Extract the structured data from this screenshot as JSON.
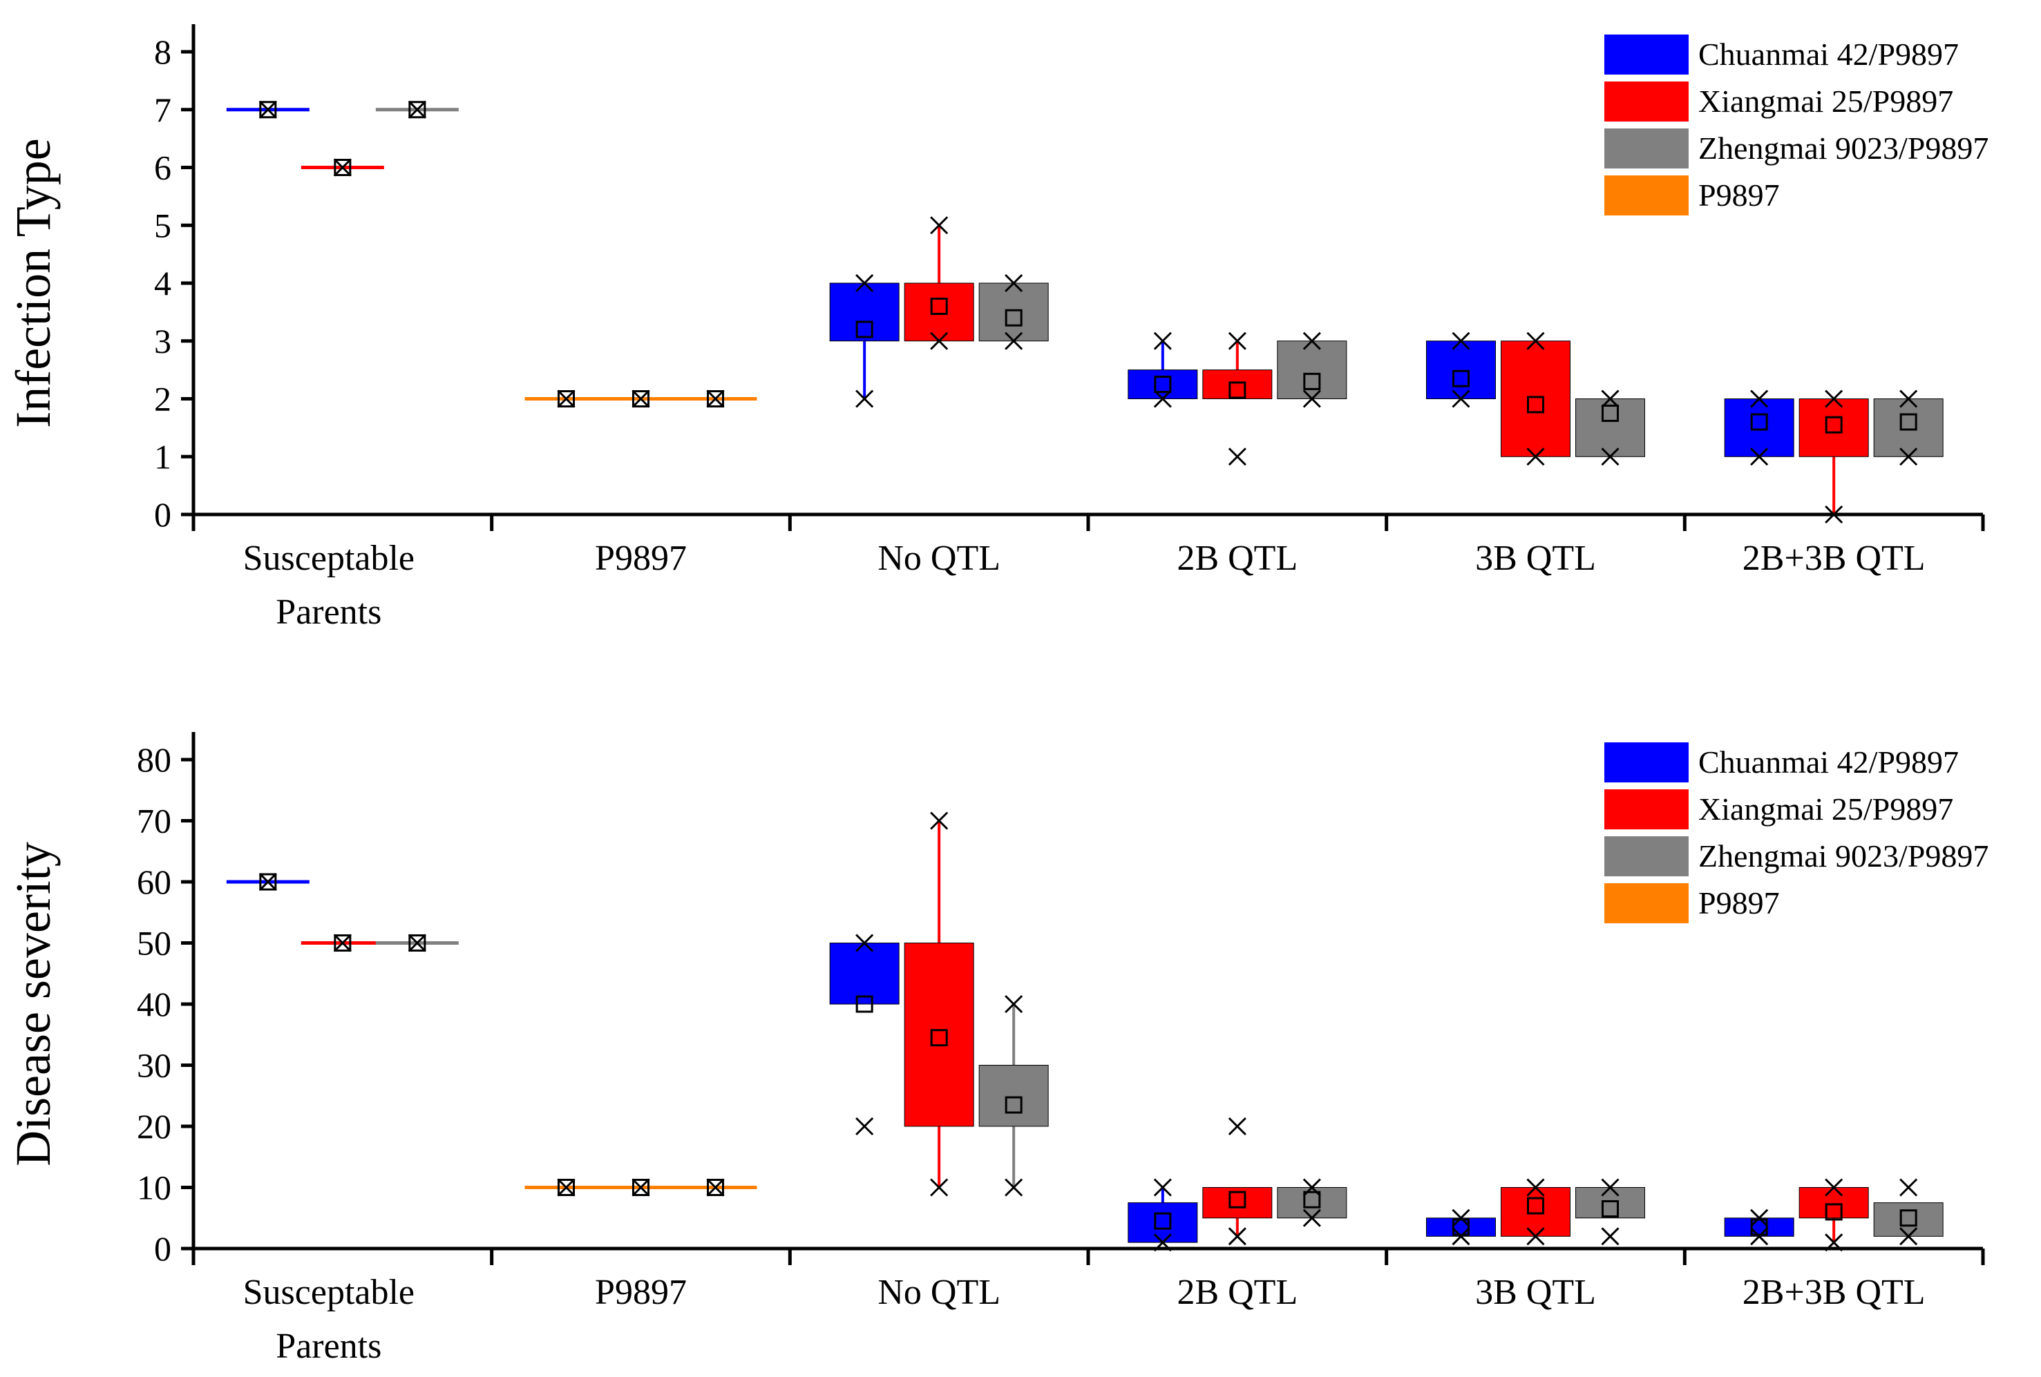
{
  "colors": {
    "Chuanmai 42/P9897": "#0000ff",
    "Xiangmai 25/P9897": "#ff0000",
    "Zhengmai 9023/P9897": "#808080",
    "P9897": "#ff8000"
  },
  "chart_data": [
    {
      "type": "box",
      "ylabel": "Infection Type",
      "xlabel": "",
      "ylim": [
        0,
        8
      ],
      "yticks": [
        0,
        1,
        2,
        3,
        4,
        5,
        6,
        7,
        8
      ],
      "categories": [
        [
          "Susceptable",
          "Parents"
        ],
        [
          "P9897"
        ],
        [
          "No QTL"
        ],
        [
          "2B QTL"
        ],
        [
          "3B QTL"
        ],
        [
          "2B+3B QTL"
        ]
      ],
      "legend": {
        "position": "top-right",
        "entries": [
          "Chuanmai 42/P9897",
          "Xiangmai 25/P9897",
          "Zhengmai 9023/P9897",
          "P9897"
        ]
      },
      "boxes": [
        {
          "category": 0,
          "slot": 0,
          "color": "Chuanmai 42/P9897",
          "q1": 7,
          "q3": 7,
          "whisker_low": 7,
          "whisker_high": 7,
          "mean": 7,
          "min": 7,
          "max": 7
        },
        {
          "category": 0,
          "slot": 1,
          "color": "Xiangmai 25/P9897",
          "q1": 6,
          "q3": 6,
          "whisker_low": 6,
          "whisker_high": 6,
          "mean": 6,
          "min": 6,
          "max": 6
        },
        {
          "category": 0,
          "slot": 2,
          "color": "Zhengmai 9023/P9897",
          "q1": 7,
          "q3": 7,
          "whisker_low": 7,
          "whisker_high": 7,
          "mean": 7,
          "min": 7,
          "max": 7
        },
        {
          "category": 1,
          "slot": 0,
          "color": "P9897",
          "q1": 2,
          "q3": 2,
          "whisker_low": 2,
          "whisker_high": 2,
          "mean": 2,
          "min": 2,
          "max": 2
        },
        {
          "category": 1,
          "slot": 1,
          "color": "P9897",
          "q1": 2,
          "q3": 2,
          "whisker_low": 2,
          "whisker_high": 2,
          "mean": 2,
          "min": 2,
          "max": 2
        },
        {
          "category": 1,
          "slot": 2,
          "color": "P9897",
          "q1": 2,
          "q3": 2,
          "whisker_low": 2,
          "whisker_high": 2,
          "mean": 2,
          "min": 2,
          "max": 2
        },
        {
          "category": 2,
          "slot": 0,
          "color": "Chuanmai 42/P9897",
          "q1": 3,
          "q3": 4,
          "whisker_low": 2,
          "whisker_high": 4,
          "mean": 3.2,
          "min": 2,
          "max": 4
        },
        {
          "category": 2,
          "slot": 1,
          "color": "Xiangmai 25/P9897",
          "q1": 3,
          "q3": 4,
          "whisker_low": 3,
          "whisker_high": 5,
          "mean": 3.6,
          "min": 3,
          "max": 5
        },
        {
          "category": 2,
          "slot": 2,
          "color": "Zhengmai 9023/P9897",
          "q1": 3,
          "q3": 4,
          "whisker_low": 3,
          "whisker_high": 4,
          "mean": 3.4,
          "min": 3,
          "max": 4
        },
        {
          "category": 3,
          "slot": 0,
          "color": "Chuanmai 42/P9897",
          "q1": 2,
          "q3": 2.5,
          "whisker_low": 2,
          "whisker_high": 3,
          "mean": 2.25,
          "min": 2,
          "max": 3
        },
        {
          "category": 3,
          "slot": 1,
          "color": "Xiangmai 25/P9897",
          "q1": 2,
          "q3": 2.5,
          "whisker_low": 2,
          "whisker_high": 3,
          "mean": 2.15,
          "min": 1,
          "max": 3
        },
        {
          "category": 3,
          "slot": 2,
          "color": "Zhengmai 9023/P9897",
          "q1": 2,
          "q3": 3,
          "whisker_low": 2,
          "whisker_high": 3,
          "mean": 2.3,
          "min": 2,
          "max": 3
        },
        {
          "category": 4,
          "slot": 0,
          "color": "Chuanmai 42/P9897",
          "q1": 2,
          "q3": 3,
          "whisker_low": 2,
          "whisker_high": 3,
          "mean": 2.35,
          "min": 2,
          "max": 3
        },
        {
          "category": 4,
          "slot": 1,
          "color": "Xiangmai 25/P9897",
          "q1": 1,
          "q3": 3,
          "whisker_low": 1,
          "whisker_high": 3,
          "mean": 1.9,
          "min": 1,
          "max": 3
        },
        {
          "category": 4,
          "slot": 2,
          "color": "Zhengmai 9023/P9897",
          "q1": 1,
          "q3": 2,
          "whisker_low": 1,
          "whisker_high": 2,
          "mean": 1.75,
          "min": 1,
          "max": 2
        },
        {
          "category": 5,
          "slot": 0,
          "color": "Chuanmai 42/P9897",
          "q1": 1,
          "q3": 2,
          "whisker_low": 1,
          "whisker_high": 2,
          "mean": 1.6,
          "min": 1,
          "max": 2
        },
        {
          "category": 5,
          "slot": 1,
          "color": "Xiangmai 25/P9897",
          "q1": 1,
          "q3": 2,
          "whisker_low": 0,
          "whisker_high": 2,
          "mean": 1.55,
          "min": 0,
          "max": 2
        },
        {
          "category": 5,
          "slot": 2,
          "color": "Zhengmai 9023/P9897",
          "q1": 1,
          "q3": 2,
          "whisker_low": 1,
          "whisker_high": 2,
          "mean": 1.6,
          "min": 1,
          "max": 2
        }
      ]
    },
    {
      "type": "box",
      "ylabel": "Disease severity",
      "xlabel": "",
      "ylim": [
        0,
        80
      ],
      "yticks": [
        0,
        10,
        20,
        30,
        40,
        50,
        60,
        70,
        80
      ],
      "categories": [
        [
          "Susceptable",
          "Parents"
        ],
        [
          "P9897"
        ],
        [
          "No QTL"
        ],
        [
          "2B QTL"
        ],
        [
          "3B QTL"
        ],
        [
          "2B+3B QTL"
        ]
      ],
      "legend": {
        "position": "top-right",
        "entries": [
          "Chuanmai 42/P9897",
          "Xiangmai 25/P9897",
          "Zhengmai 9023/P9897",
          "P9897"
        ]
      },
      "boxes": [
        {
          "category": 0,
          "slot": 0,
          "color": "Chuanmai 42/P9897",
          "q1": 60,
          "q3": 60,
          "whisker_low": 60,
          "whisker_high": 60,
          "mean": 60,
          "min": 60,
          "max": 60
        },
        {
          "category": 0,
          "slot": 1,
          "color": "Xiangmai 25/P9897",
          "q1": 50,
          "q3": 50,
          "whisker_low": 50,
          "whisker_high": 50,
          "mean": 50,
          "min": 50,
          "max": 50
        },
        {
          "category": 0,
          "slot": 2,
          "color": "Zhengmai 9023/P9897",
          "q1": 50,
          "q3": 50,
          "whisker_low": 50,
          "whisker_high": 50,
          "mean": 50,
          "min": 50,
          "max": 50
        },
        {
          "category": 1,
          "slot": 0,
          "color": "P9897",
          "q1": 10,
          "q3": 10,
          "whisker_low": 10,
          "whisker_high": 10,
          "mean": 10,
          "min": 10,
          "max": 10
        },
        {
          "category": 1,
          "slot": 1,
          "color": "P9897",
          "q1": 10,
          "q3": 10,
          "whisker_low": 10,
          "whisker_high": 10,
          "mean": 10,
          "min": 10,
          "max": 10
        },
        {
          "category": 1,
          "slot": 2,
          "color": "P9897",
          "q1": 10,
          "q3": 10,
          "whisker_low": 10,
          "whisker_high": 10,
          "mean": 10,
          "min": 10,
          "max": 10
        },
        {
          "category": 2,
          "slot": 0,
          "color": "Chuanmai 42/P9897",
          "q1": 40,
          "q3": 50,
          "whisker_low": 40,
          "whisker_high": 50,
          "mean": 40,
          "min": 20,
          "max": 50
        },
        {
          "category": 2,
          "slot": 1,
          "color": "Xiangmai 25/P9897",
          "q1": 20,
          "q3": 50,
          "whisker_low": 10,
          "whisker_high": 70,
          "mean": 34.5,
          "min": 10,
          "max": 70
        },
        {
          "category": 2,
          "slot": 2,
          "color": "Zhengmai 9023/P9897",
          "q1": 20,
          "q3": 30,
          "whisker_low": 10,
          "whisker_high": 40,
          "mean": 23.5,
          "min": 10,
          "max": 40
        },
        {
          "category": 3,
          "slot": 0,
          "color": "Chuanmai 42/P9897",
          "q1": 1,
          "q3": 7.5,
          "whisker_low": 1,
          "whisker_high": 10,
          "mean": 4.5,
          "min": 1,
          "max": 10
        },
        {
          "category": 3,
          "slot": 1,
          "color": "Xiangmai 25/P9897",
          "q1": 5,
          "q3": 10,
          "whisker_low": 2,
          "whisker_high": 10,
          "mean": 8,
          "min": 2,
          "max": 20
        },
        {
          "category": 3,
          "slot": 2,
          "color": "Zhengmai 9023/P9897",
          "q1": 5,
          "q3": 10,
          "whisker_low": 5,
          "whisker_high": 10,
          "mean": 8,
          "min": 5,
          "max": 10
        },
        {
          "category": 4,
          "slot": 0,
          "color": "Chuanmai 42/P9897",
          "q1": 2,
          "q3": 5,
          "whisker_low": 2,
          "whisker_high": 5,
          "mean": 3.5,
          "min": 2,
          "max": 5
        },
        {
          "category": 4,
          "slot": 1,
          "color": "Xiangmai 25/P9897",
          "q1": 2,
          "q3": 10,
          "whisker_low": 2,
          "whisker_high": 10,
          "mean": 7,
          "min": 2,
          "max": 10
        },
        {
          "category": 4,
          "slot": 2,
          "color": "Zhengmai 9023/P9897",
          "q1": 5,
          "q3": 10,
          "whisker_low": 5,
          "whisker_high": 10,
          "mean": 6.5,
          "min": 2,
          "max": 10
        },
        {
          "category": 5,
          "slot": 0,
          "color": "Chuanmai 42/P9897",
          "q1": 2,
          "q3": 5,
          "whisker_low": 2,
          "whisker_high": 5,
          "mean": 3.5,
          "min": 2,
          "max": 5
        },
        {
          "category": 5,
          "slot": 1,
          "color": "Xiangmai 25/P9897",
          "q1": 5,
          "q3": 10,
          "whisker_low": 1,
          "whisker_high": 10,
          "mean": 6,
          "min": 1,
          "max": 10
        },
        {
          "category": 5,
          "slot": 2,
          "color": "Zhengmai 9023/P9897",
          "q1": 2,
          "q3": 7.5,
          "whisker_low": 2,
          "whisker_high": 7.5,
          "mean": 5,
          "min": 2,
          "max": 10
        }
      ]
    }
  ]
}
